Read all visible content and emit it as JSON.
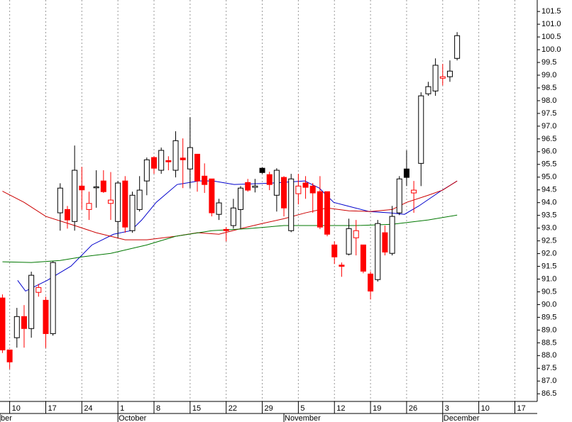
{
  "chart_data": {
    "type": "candlestick",
    "x": [
      0,
      1,
      2,
      3,
      4,
      5,
      6,
      7,
      8,
      9,
      10,
      11,
      12,
      13,
      14,
      15,
      16,
      17,
      18,
      19,
      20,
      21,
      22,
      23,
      24,
      25,
      26,
      27,
      28,
      29,
      30,
      31,
      32,
      33,
      34,
      35,
      36,
      37,
      38,
      39,
      40,
      41,
      42,
      43,
      44,
      45,
      46,
      47,
      48,
      49,
      50,
      51,
      52,
      53,
      54,
      55,
      56,
      57,
      58,
      59,
      60,
      61,
      62,
      63
    ],
    "open": [
      90.26,
      88.22,
      88.7,
      89.53,
      89.06,
      90.48,
      90.17,
      88.86,
      93.6,
      93.73,
      93.26,
      94.65,
      93.73,
      94.58,
      94.85,
      93.97,
      93.26,
      94.85,
      92.9,
      93.73,
      94.85,
      95.77,
      95.27,
      95.65,
      95.27,
      95.75,
      95.32,
      95.9,
      95.04,
      94.93,
      93.54,
      92.95,
      93.1,
      93.73,
      94.79,
      94.6,
      95.35,
      95.1,
      94.29,
      94.99,
      92.9,
      94.35,
      94.77,
      94.65,
      94.43,
      94.43,
      92.34,
      91.55,
      91.98,
      92.62,
      92.34,
      91.2,
      90.98,
      92.82,
      92.01,
      93.6,
      95.32,
      94.38,
      95.54,
      98.27,
      98.38,
      98.88,
      98.94,
      99.66
    ],
    "high": [
      90.4,
      88.2,
      89.87,
      89.98,
      91.29,
      90.81,
      90.31,
      91.7,
      94.76,
      93.87,
      96.24,
      95.4,
      94.43,
      95.27,
      95.27,
      95.2,
      94.85,
      95.04,
      94.43,
      95.04,
      95.77,
      95.82,
      96.16,
      95.82,
      96.8,
      96.52,
      97.35,
      95.9,
      95.54,
      94.93,
      94.15,
      93.04,
      94.15,
      94.65,
      94.93,
      94.93,
      95.38,
      95.21,
      95.35,
      95.04,
      95.13,
      95.13,
      95.04,
      94.77,
      95.04,
      94.43,
      92.48,
      91.65,
      93.37,
      93.32,
      92.34,
      91.3,
      93.32,
      93.1,
      93.87,
      95.04,
      96.05,
      94.85,
      98.33,
      98.74,
      99.66,
      99.44,
      99.58,
      100.69
    ],
    "low": [
      88.1,
      87.47,
      88.31,
      88.31,
      88.7,
      90.31,
      88.3,
      88.78,
      92.9,
      92.98,
      92.9,
      93.73,
      93.32,
      93.8,
      94.38,
      93.32,
      92.62,
      92.82,
      92.82,
      93.65,
      94.29,
      95.13,
      95.13,
      95.27,
      94.99,
      94.57,
      94.57,
      94.43,
      94.38,
      93.46,
      93.32,
      92.48,
      92.98,
      92.98,
      94.43,
      94.4,
      95.13,
      94.49,
      93.65,
      93.46,
      92.84,
      93.93,
      94.15,
      93.6,
      92.96,
      92.68,
      91.59,
      91.09,
      91.93,
      91.93,
      91.23,
      90.2,
      90.9,
      91.93,
      91.93,
      93.51,
      94.65,
      93.6,
      94.65,
      98.19,
      98.19,
      98.6,
      98.74,
      99.58
    ],
    "close": [
      88.22,
      87.75,
      89.53,
      89.06,
      91.15,
      90.67,
      88.86,
      91.65,
      94.57,
      93.32,
      95.27,
      94.5,
      93.97,
      94.62,
      94.43,
      94.1,
      94.77,
      93.04,
      94.29,
      94.49,
      95.68,
      95.35,
      96.05,
      95.6,
      96.43,
      95.68,
      96.16,
      94.85,
      94.71,
      93.6,
      93.99,
      92.9,
      93.79,
      94.57,
      94.49,
      94.65,
      95.18,
      94.71,
      95.27,
      93.79,
      94.93,
      94.65,
      94.6,
      94.38,
      93.04,
      92.76,
      91.87,
      91.5,
      92.98,
      92.9,
      91.31,
      90.53,
      93.18,
      92.06,
      93.46,
      94.93,
      94.99,
      94.49,
      98.19,
      98.55,
      99.39,
      98.94,
      99.16,
      100.55
    ],
    "up_color": "#000000",
    "down_color": "#ff0000",
    "overlays": [
      {
        "color": "#0000cc",
        "x": [
          2.1,
          3.2,
          6.2,
          9.5,
          12.4,
          15.4,
          17.8,
          19.3,
          21.3,
          24.2,
          27.2,
          29.2,
          32.1,
          37,
          41.9,
          43.9,
          45.9,
          47.8,
          50.8,
          53.7,
          55.7,
          57.7,
          60.6,
          63
        ],
        "values": [
          90.95,
          90.53,
          90.95,
          91.51,
          92.34,
          92.76,
          92.9,
          93.32,
          94.01,
          94.71,
          94.85,
          94.85,
          94.71,
          94.76,
          94.85,
          94.57,
          94.01,
          93.87,
          93.65,
          93.6,
          93.54,
          93.87,
          94.43,
          94.85
        ]
      },
      {
        "color": "#cc0000",
        "x": [
          0,
          3,
          6,
          10,
          13,
          17,
          20,
          24,
          27,
          30,
          33,
          36,
          39,
          42,
          45,
          48,
          51,
          54,
          56,
          59,
          61,
          63
        ],
        "values": [
          94.45,
          94.01,
          93.46,
          93.1,
          92.82,
          92.54,
          92.54,
          92.68,
          92.82,
          92.76,
          92.98,
          93.18,
          93.37,
          93.6,
          93.79,
          93.68,
          93.65,
          93.73,
          94.01,
          94.29,
          94.49,
          94.85
        ]
      },
      {
        "color": "#007700",
        "x": [
          0,
          4,
          8,
          11,
          15,
          20,
          24,
          29,
          34,
          39,
          44,
          49,
          54,
          59,
          63
        ],
        "values": [
          91.68,
          91.65,
          91.73,
          91.87,
          92.01,
          92.34,
          92.68,
          92.9,
          92.98,
          93.1,
          93.1,
          93.1,
          93.15,
          93.32,
          93.51
        ]
      }
    ],
    "xlim": [
      -0.34,
      74.1
    ],
    "xticks": [
      {
        "value": 1,
        "label": "10"
      },
      {
        "value": 6,
        "label": "17"
      },
      {
        "value": 11,
        "label": "24"
      },
      {
        "value": 16,
        "label": "1"
      },
      {
        "value": 21,
        "label": "8"
      },
      {
        "value": 26,
        "label": "15"
      },
      {
        "value": 31,
        "label": "22"
      },
      {
        "value": 36,
        "label": "29"
      },
      {
        "value": 41,
        "label": "5"
      },
      {
        "value": 46,
        "label": "12"
      },
      {
        "value": 51,
        "label": "19"
      },
      {
        "value": 56,
        "label": "26"
      },
      {
        "value": 61,
        "label": "3"
      },
      {
        "value": 66,
        "label": "10"
      },
      {
        "value": 71,
        "label": "17"
      }
    ],
    "month_ticks": [
      {
        "value": -0.34,
        "label": "ber"
      },
      {
        "value": 16,
        "label": "October"
      },
      {
        "value": 39,
        "label": "November"
      },
      {
        "value": 61,
        "label": "December"
      }
    ],
    "ylim": [
      86.2,
      101.95
    ],
    "yticks": [
      86.5,
      {
        "value": 87,
        "label": "87.0"
      },
      87.5,
      {
        "value": 88,
        "label": "88.0"
      },
      88.5,
      {
        "value": 89,
        "label": "89.0"
      },
      89.5,
      {
        "value": 90,
        "label": "90.0"
      },
      90.5,
      {
        "value": 91,
        "label": "91.0"
      },
      91.5,
      {
        "value": 92,
        "label": "92.0"
      },
      92.5,
      {
        "value": 93,
        "label": "93.0"
      },
      93.5,
      {
        "value": 94,
        "label": "94.0"
      },
      94.5,
      {
        "value": 95,
        "label": "95.0"
      },
      95.5,
      {
        "value": 96,
        "label": "96.0"
      },
      96.5,
      {
        "value": 97,
        "label": "97.0"
      },
      97.5,
      {
        "value": 98,
        "label": "98.0"
      },
      98.5,
      {
        "value": 99,
        "label": "99.0"
      },
      99.5,
      {
        "value": 100,
        "label": "100.0"
      },
      100.5,
      {
        "value": 101,
        "label": "101.0"
      },
      101.5
    ],
    "grid": true
  }
}
